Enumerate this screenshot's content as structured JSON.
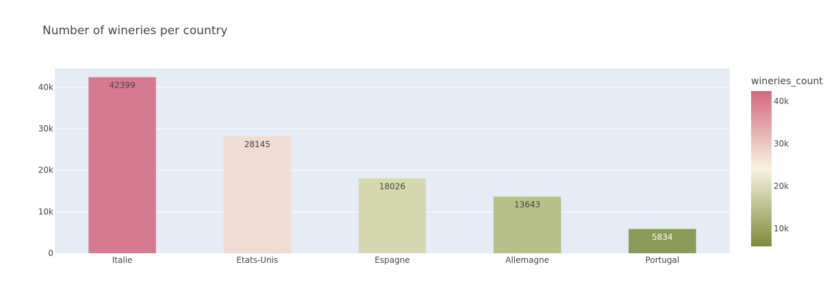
{
  "chart_data": {
    "type": "bar",
    "title": "Number of wineries per country",
    "xlabel": "",
    "ylabel": "",
    "categories": [
      "Italie",
      "Etats-Unis",
      "Espagne",
      "Allemagne",
      "Portugal"
    ],
    "values": [
      42399,
      28145,
      18026,
      13643,
      5834
    ],
    "data_labels": [
      "42399",
      "28145",
      "18026",
      "13643",
      "5834"
    ],
    "ylim": [
      0,
      44500
    ],
    "yticks": [
      0,
      10000,
      20000,
      30000,
      40000
    ],
    "ytick_labels": [
      "0",
      "10k",
      "20k",
      "30k",
      "40k"
    ],
    "grid": true,
    "bar_colors": [
      "#d67b8f",
      "#f0dcd3",
      "#d6d8b0",
      "#b8c08a",
      "#8a9a57"
    ],
    "label_colors": [
      "#444444",
      "#444444",
      "#444444",
      "#444444",
      "#ffffff"
    ],
    "plot_bgcolor": "#e5ecf6",
    "colorbar": {
      "title": "wineries_count",
      "range": [
        5834,
        42399
      ],
      "ticks": [
        10000,
        20000,
        30000,
        40000
      ],
      "tick_labels": [
        "10k",
        "20k",
        "30k",
        "40k"
      ],
      "colors": [
        "#7f8a3a",
        "#b5c08a",
        "#e5e6c4",
        "#fbf5e6",
        "#f0cfc9",
        "#e29aa7",
        "#d4687f"
      ],
      "legend_position": "right"
    }
  }
}
